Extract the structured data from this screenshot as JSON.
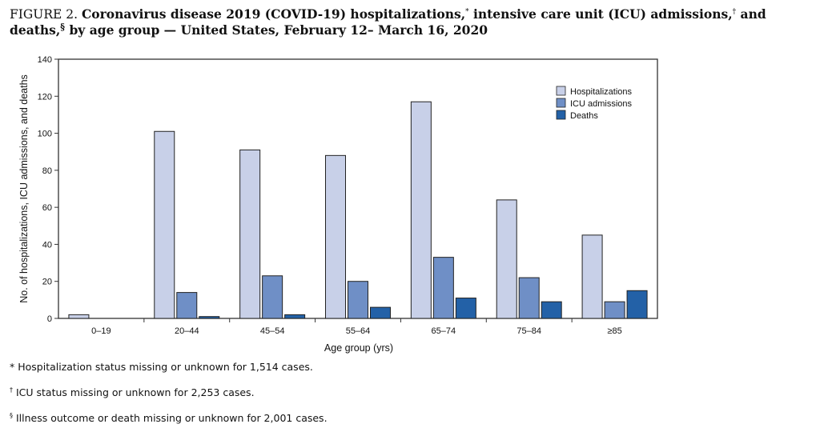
{
  "title": {
    "label": "FIGURE 2.",
    "text_part1": "Coronavirus disease 2019 (COVID-19) hospitalizations,",
    "mark1": "*",
    "text_part2": " intensive care unit (ICU) admissions,",
    "mark2": "†",
    "text_part3": " and deaths,",
    "mark3": "§",
    "text_part4": " by age group — United States, February 12– March 16, 2020"
  },
  "chart_data": {
    "type": "bar",
    "xlabel": "Age group (yrs)",
    "ylabel": "No. of hospitalizations, ICU admissions, and deaths",
    "ylim": [
      0,
      140
    ],
    "yticks": [
      0,
      20,
      40,
      60,
      80,
      100,
      120,
      140
    ],
    "categories": [
      "0–19",
      "20–44",
      "45–54",
      "55–64",
      "65–74",
      "75–84",
      "≥85"
    ],
    "series": [
      {
        "name": "Hospitalizations",
        "color": "#c8d0e8",
        "values": [
          2,
          101,
          91,
          88,
          117,
          64,
          45
        ]
      },
      {
        "name": "ICU admissions",
        "color": "#6f8fc6",
        "values": [
          0,
          14,
          23,
          20,
          33,
          22,
          9
        ]
      },
      {
        "name": "Deaths",
        "color": "#2361a7",
        "values": [
          0,
          1,
          2,
          6,
          11,
          9,
          15
        ]
      }
    ],
    "legend_position": "top-right",
    "grid": false
  },
  "footnotes": [
    {
      "mark": "*",
      "text": " Hospitalization status missing or unknown for 1,514 cases."
    },
    {
      "mark": "†",
      "text": " ICU status missing or unknown for 2,253 cases."
    },
    {
      "mark": "§",
      "text": " Illness outcome or death missing or unknown for 2,001 cases."
    }
  ]
}
